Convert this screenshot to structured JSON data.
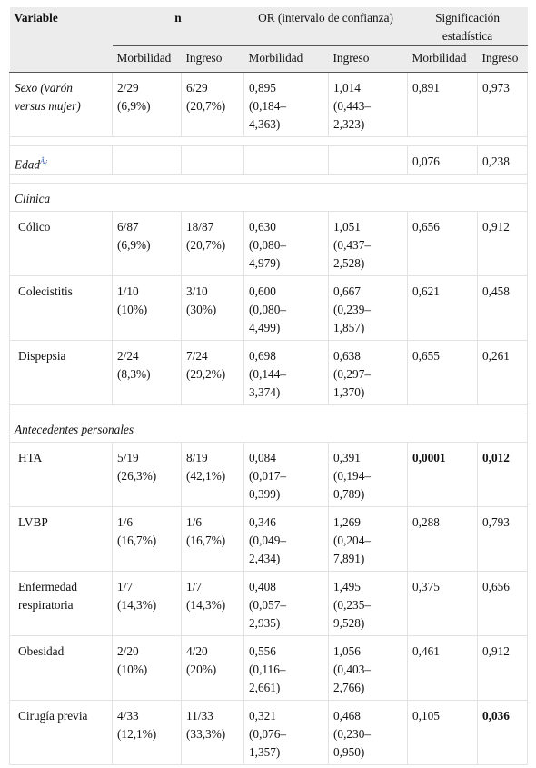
{
  "table": {
    "header": {
      "variable": "Variable",
      "n": "n",
      "or": "OR (intervalo de confianza)",
      "sig": [
        "Significación",
        "estadística"
      ],
      "sub": [
        "Morbilidad",
        "Ingreso",
        "Morbilidad",
        "Ingreso",
        "Morbilidad",
        "Ingreso"
      ]
    },
    "rows": [
      {
        "italic": true,
        "cells": [
          [
            "Sexo (varón",
            "versus mujer)"
          ],
          [
            "2/29",
            "(6,9%)"
          ],
          [
            "6/29",
            "(20,7%)"
          ],
          [
            "0,895",
            "(0,184–",
            "4,363)"
          ],
          [
            "1,014",
            "(0,443–",
            "2,323)"
          ],
          [
            "0,891"
          ],
          [
            "0,973"
          ]
        ]
      },
      {
        "italic": true,
        "ref": "Â¿",
        "cells": [
          [
            "Edad"
          ],
          [],
          [],
          [],
          [],
          [
            "0,076"
          ],
          [
            "0,238"
          ]
        ]
      },
      {
        "section": "Clínica"
      },
      {
        "cells": [
          [
            "Cólico"
          ],
          [
            "6/87",
            "(6,9%)"
          ],
          [
            "18/87",
            "(20,7%)"
          ],
          [
            "0,630",
            "(0,080–",
            "4,979)"
          ],
          [
            "1,051",
            "(0,437–",
            "2,528)"
          ],
          [
            "0,656"
          ],
          [
            "0,912"
          ]
        ]
      },
      {
        "cells": [
          [
            "Colecistitis"
          ],
          [
            "1/10",
            "(10%)"
          ],
          [
            "3/10",
            "(30%)"
          ],
          [
            "0,600",
            "(0,080–",
            "4,499)"
          ],
          [
            "0,667",
            "(0,239–",
            "1,857)"
          ],
          [
            "0,621"
          ],
          [
            "0,458"
          ]
        ]
      },
      {
        "cells": [
          [
            "Dispepsia"
          ],
          [
            "2/24",
            "(8,3%)"
          ],
          [
            "7/24",
            "(29,2%)"
          ],
          [
            "0,698",
            "(0,144–",
            "3,374)"
          ],
          [
            "0,638",
            "(0,297–",
            "1,370)"
          ],
          [
            "0,655"
          ],
          [
            "0,261"
          ]
        ]
      },
      {
        "section": "Antecedentes personales"
      },
      {
        "cells": [
          [
            "HTA"
          ],
          [
            "5/19",
            "(26,3%)"
          ],
          [
            "8/19",
            "(42,1%)"
          ],
          [
            "0,084",
            "(0,017–",
            "0,399)"
          ],
          [
            "0,391",
            "(0,194–",
            "0,789)"
          ],
          {
            "text": "0,0001",
            "bold": true
          },
          {
            "text": "0,012",
            "bold": true
          }
        ]
      },
      {
        "cells": [
          [
            "LVBP"
          ],
          [
            "1/6",
            "(16,7%)"
          ],
          [
            "1/6",
            "(16,7%)"
          ],
          [
            "0,346",
            "(0,049–",
            "2,434)"
          ],
          [
            "1,269",
            "(0,204–",
            "7,891)"
          ],
          [
            "0,288"
          ],
          [
            "0,793"
          ]
        ]
      },
      {
        "cells": [
          [
            "Enfermedad",
            "respiratoria"
          ],
          [
            "1/7",
            "(14,3%)"
          ],
          [
            "1/7",
            "(14,3%)"
          ],
          [
            "0,408",
            "(0,057–",
            "2,935)"
          ],
          [
            "1,495",
            "(0,235–",
            "9,528)"
          ],
          [
            "0,375"
          ],
          [
            "0,656"
          ]
        ]
      },
      {
        "cells": [
          [
            "Obesidad"
          ],
          [
            "2/20",
            "(10%)"
          ],
          [
            "4/20",
            "(20%)"
          ],
          [
            "0,556",
            "(0,116–",
            "2,661)"
          ],
          [
            "1,056",
            "(0,403–",
            "2,766)"
          ],
          [
            "0,461"
          ],
          [
            "0,912"
          ]
        ]
      },
      {
        "cells": [
          [
            "Cirugía previa"
          ],
          [
            "4/33",
            "(12,1%)"
          ],
          [
            "11/33",
            "(33,3%)"
          ],
          [
            "0,321",
            "(0,076–",
            "1,357)"
          ],
          [
            "0,468",
            "(0,230–",
            "0,950)"
          ],
          [
            "0,105"
          ],
          {
            "text": "0,036",
            "bold": true
          }
        ]
      }
    ]
  }
}
